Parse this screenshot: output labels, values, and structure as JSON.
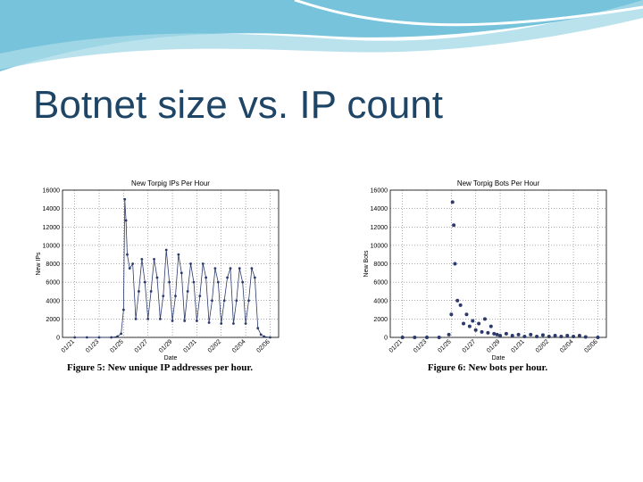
{
  "slide_title": "Botnet size vs. IP count",
  "chart_data": [
    {
      "type": "line",
      "title": "New Torpig IPs Per Hour",
      "x_label": "Date",
      "y_label": "New IPs",
      "caption": "Figure 5: New unique IP addresses per hour.",
      "line": true,
      "grid": true,
      "xlim": [
        -1,
        16.7
      ],
      "ylim": [
        0,
        16000
      ],
      "xticks": [
        {
          "value": 0,
          "label": "01/21"
        },
        {
          "value": 2,
          "label": "01/23"
        },
        {
          "value": 4,
          "label": "01/25"
        },
        {
          "value": 6,
          "label": "01/27"
        },
        {
          "value": 8,
          "label": "01/29"
        },
        {
          "value": 10,
          "label": "01/31"
        },
        {
          "value": 12,
          "label": "02/02"
        },
        {
          "value": 14,
          "label": "02/04"
        },
        {
          "value": 16,
          "label": "02/06"
        }
      ],
      "yticks": [
        0,
        2000,
        4000,
        6000,
        8000,
        10000,
        12000,
        14000,
        16000
      ],
      "series": [
        {
          "color": "#2b3a6b",
          "x": [
            0,
            1,
            2,
            3,
            3.5,
            3.8,
            4.0,
            4.1,
            4.2,
            4.3,
            4.5,
            4.75,
            5.0,
            5.25,
            5.5,
            5.75,
            6.0,
            6.25,
            6.5,
            6.75,
            7.0,
            7.25,
            7.5,
            7.75,
            8.0,
            8.25,
            8.5,
            8.75,
            9.0,
            9.25,
            9.5,
            9.75,
            10.0,
            10.25,
            10.5,
            10.75,
            11.0,
            11.25,
            11.5,
            11.75,
            12.0,
            12.25,
            12.5,
            12.75,
            13.0,
            13.25,
            13.5,
            13.75,
            14.0,
            14.25,
            14.5,
            14.75,
            15.0,
            15.25,
            15.5,
            16
          ],
          "values": [
            0,
            0,
            0,
            0,
            100,
            400,
            3000,
            15000,
            12700,
            9000,
            7500,
            8000,
            2000,
            5000,
            8500,
            6000,
            2000,
            5000,
            8500,
            6500,
            2000,
            4500,
            9500,
            6000,
            1800,
            4500,
            9000,
            7000,
            1800,
            5000,
            8000,
            6000,
            1800,
            4500,
            8000,
            6500,
            1600,
            4000,
            7500,
            6000,
            1500,
            4000,
            6500,
            7500,
            1500,
            4000,
            7500,
            6000,
            1500,
            4000,
            7500,
            6500,
            1000,
            300,
            100,
            0
          ]
        }
      ]
    },
    {
      "type": "line",
      "title": "New Torpig Bots Per Hour",
      "x_label": "Date",
      "y_label": "New Bots",
      "caption": "Figure 6: New bots per hour.",
      "line": false,
      "grid": true,
      "xlim": [
        -1,
        16.7
      ],
      "ylim": [
        0,
        16000
      ],
      "xticks": [
        {
          "value": 0,
          "label": "01/21"
        },
        {
          "value": 2,
          "label": "01/23"
        },
        {
          "value": 4,
          "label": "01/25"
        },
        {
          "value": 6,
          "label": "01/27"
        },
        {
          "value": 8,
          "label": "01/29"
        },
        {
          "value": 10,
          "label": "01/31"
        },
        {
          "value": 12,
          "label": "02/02"
        },
        {
          "value": 14,
          "label": "02/04"
        },
        {
          "value": 16,
          "label": "02/06"
        }
      ],
      "yticks": [
        0,
        2000,
        4000,
        6000,
        8000,
        10000,
        12000,
        14000,
        16000
      ],
      "series": [
        {
          "color": "#2b3a6b",
          "x": [
            0,
            1,
            2,
            3,
            3.8,
            4.0,
            4.1,
            4.2,
            4.3,
            4.5,
            4.75,
            5.0,
            5.25,
            5.5,
            5.75,
            6.0,
            6.25,
            6.5,
            6.75,
            7.0,
            7.25,
            7.5,
            7.75,
            8.0,
            8.5,
            9.0,
            9.5,
            10,
            10.5,
            11,
            11.5,
            12,
            12.5,
            13,
            13.5,
            14,
            14.5,
            15,
            16
          ],
          "values": [
            0,
            0,
            0,
            0,
            300,
            2500,
            14700,
            12200,
            8000,
            4000,
            3500,
            1500,
            2500,
            1200,
            1800,
            800,
            1500,
            600,
            2000,
            500,
            1200,
            400,
            300,
            200,
            400,
            200,
            300,
            100,
            300,
            100,
            250,
            100,
            200,
            100,
            200,
            100,
            200,
            50,
            0
          ]
        }
      ]
    }
  ]
}
